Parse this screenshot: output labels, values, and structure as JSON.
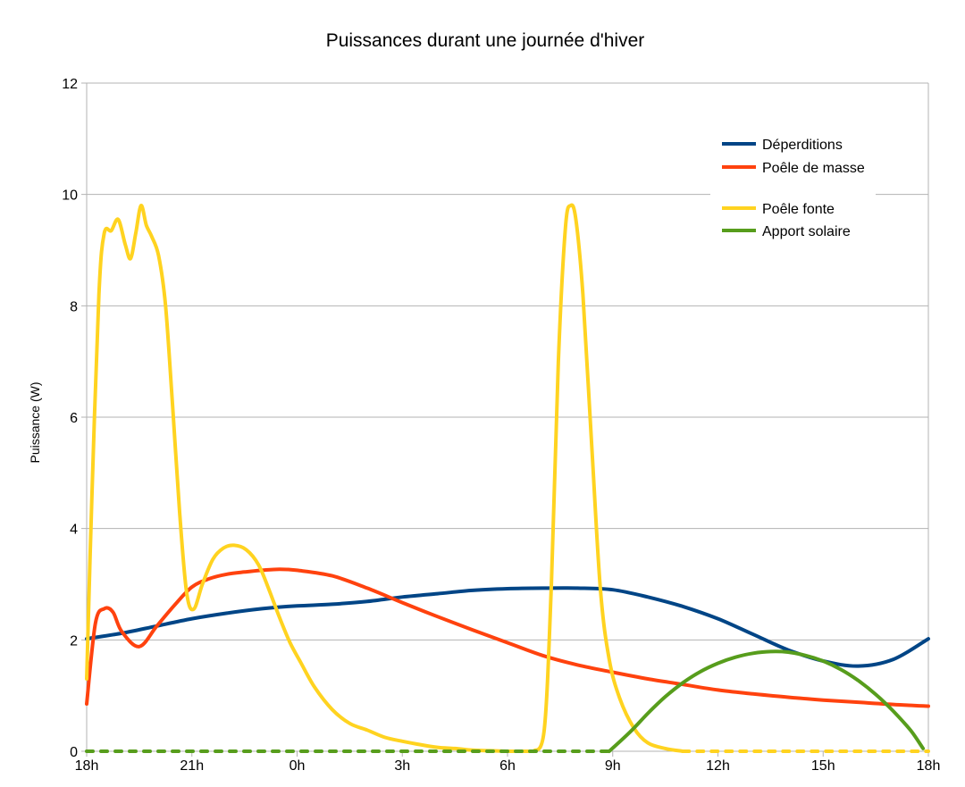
{
  "chart_data": {
    "type": "line",
    "title": "Puissances durant une journée d'hiver",
    "ylabel": "Puissance (W)",
    "xlabel": "",
    "ylim": [
      0,
      12
    ],
    "xlim": [
      0,
      24
    ],
    "yticks": [
      0,
      2,
      4,
      6,
      8,
      10,
      12
    ],
    "xticks": [
      {
        "x": 0,
        "label": "18h"
      },
      {
        "x": 3,
        "label": "21h"
      },
      {
        "x": 6,
        "label": "0h"
      },
      {
        "x": 9,
        "label": "3h"
      },
      {
        "x": 12,
        "label": "6h"
      },
      {
        "x": 15,
        "label": "9h"
      },
      {
        "x": 18,
        "label": "12h"
      },
      {
        "x": 21,
        "label": "15h"
      },
      {
        "x": 24,
        "label": "18h"
      }
    ],
    "grid": true,
    "legend_position": "top-right",
    "series": [
      {
        "name": "Déperditions",
        "color": "#004586",
        "dashed_zero": false,
        "points": [
          [
            0,
            2.02
          ],
          [
            1,
            2.12
          ],
          [
            2,
            2.25
          ],
          [
            3,
            2.38
          ],
          [
            4,
            2.48
          ],
          [
            5,
            2.56
          ],
          [
            6,
            2.61
          ],
          [
            7,
            2.64
          ],
          [
            8,
            2.69
          ],
          [
            9,
            2.77
          ],
          [
            10,
            2.83
          ],
          [
            11,
            2.89
          ],
          [
            12,
            2.92
          ],
          [
            13,
            2.93
          ],
          [
            14,
            2.93
          ],
          [
            15,
            2.9
          ],
          [
            16,
            2.77
          ],
          [
            17,
            2.6
          ],
          [
            18,
            2.38
          ],
          [
            19,
            2.1
          ],
          [
            20,
            1.82
          ],
          [
            21,
            1.62
          ],
          [
            22,
            1.53
          ],
          [
            23,
            1.65
          ],
          [
            24,
            2.02
          ]
        ]
      },
      {
        "name": "Poêle de masse",
        "color": "#ff420e",
        "dashed_zero": false,
        "points": [
          [
            0,
            0.85
          ],
          [
            0.25,
            2.3
          ],
          [
            0.5,
            2.56
          ],
          [
            0.75,
            2.5
          ],
          [
            1,
            2.15
          ],
          [
            1.5,
            1.88
          ],
          [
            2,
            2.25
          ],
          [
            2.5,
            2.62
          ],
          [
            3,
            2.95
          ],
          [
            3.5,
            3.1
          ],
          [
            4,
            3.18
          ],
          [
            4.5,
            3.22
          ],
          [
            5,
            3.25
          ],
          [
            5.5,
            3.27
          ],
          [
            6,
            3.25
          ],
          [
            7,
            3.15
          ],
          [
            8,
            2.93
          ],
          [
            9,
            2.67
          ],
          [
            10,
            2.42
          ],
          [
            11,
            2.18
          ],
          [
            12,
            1.95
          ],
          [
            13,
            1.72
          ],
          [
            14,
            1.55
          ],
          [
            15,
            1.42
          ],
          [
            16,
            1.3
          ],
          [
            17,
            1.2
          ],
          [
            18,
            1.1
          ],
          [
            19,
            1.03
          ],
          [
            20,
            0.97
          ],
          [
            21,
            0.92
          ],
          [
            22,
            0.88
          ],
          [
            23,
            0.84
          ],
          [
            24,
            0.81
          ]
        ]
      },
      {
        "name": "Poêle fonte",
        "color": "#ffd320",
        "dashed_zero": true,
        "points": [
          [
            0,
            1.3
          ],
          [
            0.15,
            4.6
          ],
          [
            0.35,
            8.2
          ],
          [
            0.5,
            9.3
          ],
          [
            0.7,
            9.35
          ],
          [
            0.9,
            9.55
          ],
          [
            1.1,
            9.1
          ],
          [
            1.25,
            8.85
          ],
          [
            1.4,
            9.3
          ],
          [
            1.55,
            9.8
          ],
          [
            1.7,
            9.45
          ],
          [
            1.85,
            9.25
          ],
          [
            2.05,
            8.9
          ],
          [
            2.25,
            8.0
          ],
          [
            2.45,
            6.2
          ],
          [
            2.65,
            4.3
          ],
          [
            2.85,
            2.85
          ],
          [
            3.05,
            2.55
          ],
          [
            3.3,
            3.0
          ],
          [
            3.6,
            3.45
          ],
          [
            3.9,
            3.65
          ],
          [
            4.2,
            3.7
          ],
          [
            4.55,
            3.62
          ],
          [
            4.9,
            3.35
          ],
          [
            5.2,
            2.9
          ],
          [
            5.5,
            2.4
          ],
          [
            5.8,
            1.95
          ],
          [
            6.1,
            1.6
          ],
          [
            6.5,
            1.15
          ],
          [
            7,
            0.75
          ],
          [
            7.5,
            0.5
          ],
          [
            8,
            0.38
          ],
          [
            8.5,
            0.25
          ],
          [
            9,
            0.18
          ],
          [
            9.5,
            0.12
          ],
          [
            10,
            0.07
          ],
          [
            10.5,
            0.05
          ],
          [
            11,
            0.02
          ],
          [
            11.5,
            0.01
          ],
          [
            12,
            0
          ],
          [
            12.75,
            0
          ],
          [
            13.05,
            0.4
          ],
          [
            13.25,
            3.0
          ],
          [
            13.45,
            7.0
          ],
          [
            13.65,
            9.4
          ],
          [
            13.8,
            9.8
          ],
          [
            13.95,
            9.55
          ],
          [
            14.15,
            8.2
          ],
          [
            14.4,
            5.5
          ],
          [
            14.65,
            2.9
          ],
          [
            14.9,
            1.65
          ],
          [
            15.2,
            0.95
          ],
          [
            15.6,
            0.42
          ],
          [
            16,
            0.15
          ],
          [
            16.5,
            0.05
          ],
          [
            17,
            0
          ],
          [
            24,
            0
          ]
        ]
      },
      {
        "name": "Apport solaire",
        "color": "#579d1c",
        "dashed_zero": true,
        "points": [
          [
            0,
            0
          ],
          [
            14.9,
            0
          ],
          [
            15.5,
            0.35
          ],
          [
            16,
            0.68
          ],
          [
            16.5,
            0.98
          ],
          [
            17,
            1.23
          ],
          [
            17.5,
            1.43
          ],
          [
            18,
            1.58
          ],
          [
            18.5,
            1.69
          ],
          [
            19,
            1.76
          ],
          [
            19.5,
            1.79
          ],
          [
            20,
            1.78
          ],
          [
            20.5,
            1.72
          ],
          [
            21,
            1.62
          ],
          [
            21.5,
            1.47
          ],
          [
            22,
            1.27
          ],
          [
            22.5,
            1.02
          ],
          [
            23,
            0.72
          ],
          [
            23.5,
            0.37
          ],
          [
            23.85,
            0.05
          ]
        ]
      }
    ]
  }
}
